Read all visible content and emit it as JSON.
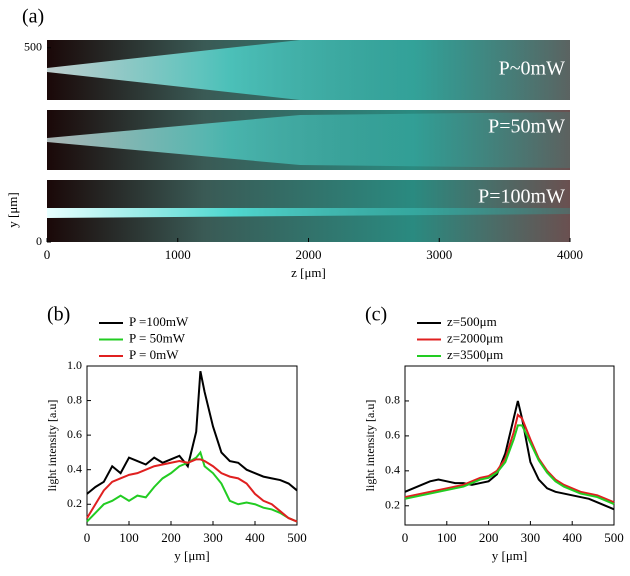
{
  "chart_data": [
    {
      "type": "image",
      "panel_label": "(a)",
      "annotations": [
        "P~0mW",
        "P=50mW",
        "P=100mW"
      ],
      "xlim": [
        0,
        4000
      ],
      "xticks": [
        0,
        1000,
        2000,
        3000,
        4000
      ],
      "ylim": [
        0,
        520
      ],
      "yticks": [
        0,
        500
      ],
      "xlabel": "z  [μm]",
      "ylabel": "y  [μm]"
    },
    {
      "type": "line",
      "panel_label": "(b)",
      "x": [
        0,
        20,
        40,
        60,
        80,
        100,
        120,
        140,
        160,
        180,
        200,
        220,
        240,
        260,
        270,
        280,
        300,
        320,
        340,
        360,
        380,
        400,
        420,
        440,
        460,
        480,
        500
      ],
      "series": [
        {
          "name": "P =100mW",
          "color": "#000000",
          "values": [
            0.26,
            0.3,
            0.33,
            0.42,
            0.38,
            0.47,
            0.45,
            0.43,
            0.47,
            0.44,
            0.46,
            0.48,
            0.42,
            0.62,
            0.97,
            0.85,
            0.65,
            0.5,
            0.45,
            0.44,
            0.4,
            0.38,
            0.36,
            0.35,
            0.34,
            0.32,
            0.28
          ]
        },
        {
          "name": "P = 50mW",
          "color": "#22cc22",
          "values": [
            0.1,
            0.15,
            0.2,
            0.22,
            0.25,
            0.22,
            0.25,
            0.24,
            0.3,
            0.35,
            0.38,
            0.42,
            0.44,
            0.47,
            0.5,
            0.42,
            0.38,
            0.32,
            0.22,
            0.2,
            0.21,
            0.2,
            0.18,
            0.17,
            0.15,
            0.12,
            0.1
          ]
        },
        {
          "name": "P = 0mW",
          "color": "#e02020",
          "values": [
            0.12,
            0.2,
            0.28,
            0.33,
            0.35,
            0.37,
            0.38,
            0.4,
            0.42,
            0.43,
            0.44,
            0.45,
            0.44,
            0.46,
            0.46,
            0.45,
            0.42,
            0.38,
            0.36,
            0.35,
            0.32,
            0.26,
            0.22,
            0.2,
            0.16,
            0.12,
            0.1
          ]
        }
      ],
      "xlim": [
        0,
        500
      ],
      "xticks": [
        0,
        100,
        200,
        300,
        400,
        500
      ],
      "ylim": [
        0.08,
        1.0
      ],
      "yticks": [
        0.2,
        0.4,
        0.6,
        0.8,
        {
          "value": 1.0,
          "label": "1.0"
        }
      ],
      "xlabel": "y [μm]",
      "ylabel": "light intensity  [a.u]"
    },
    {
      "type": "line",
      "panel_label": "(c)",
      "x": [
        0,
        20,
        40,
        60,
        80,
        100,
        120,
        140,
        160,
        180,
        200,
        220,
        240,
        260,
        270,
        280,
        300,
        320,
        340,
        360,
        380,
        400,
        420,
        440,
        460,
        480,
        500
      ],
      "series": [
        {
          "name": "z=500μm",
          "color": "#000000",
          "values": [
            0.28,
            0.3,
            0.32,
            0.34,
            0.35,
            0.34,
            0.33,
            0.33,
            0.32,
            0.33,
            0.34,
            0.38,
            0.5,
            0.7,
            0.8,
            0.7,
            0.45,
            0.35,
            0.3,
            0.28,
            0.27,
            0.26,
            0.25,
            0.24,
            0.22,
            0.2,
            0.18
          ]
        },
        {
          "name": "z=2000μm",
          "color": "#e02020",
          "values": [
            0.25,
            0.26,
            0.27,
            0.28,
            0.29,
            0.3,
            0.31,
            0.32,
            0.34,
            0.36,
            0.37,
            0.4,
            0.47,
            0.62,
            0.72,
            0.7,
            0.58,
            0.47,
            0.4,
            0.35,
            0.32,
            0.3,
            0.28,
            0.27,
            0.26,
            0.24,
            0.22
          ]
        },
        {
          "name": "z=3500μm",
          "color": "#22cc22",
          "values": [
            0.24,
            0.25,
            0.26,
            0.27,
            0.28,
            0.29,
            0.3,
            0.31,
            0.33,
            0.35,
            0.36,
            0.39,
            0.45,
            0.58,
            0.66,
            0.66,
            0.56,
            0.46,
            0.39,
            0.34,
            0.31,
            0.29,
            0.27,
            0.26,
            0.25,
            0.23,
            0.21
          ]
        }
      ],
      "xlim": [
        0,
        500
      ],
      "xticks": [
        0,
        100,
        200,
        300,
        400,
        500
      ],
      "ylim": [
        0.09,
        1.0
      ],
      "yticks": [
        0.2,
        0.4,
        0.6,
        0.8
      ],
      "xlabel": "y [μm]",
      "ylabel": "light intensity  [a.u]"
    }
  ]
}
